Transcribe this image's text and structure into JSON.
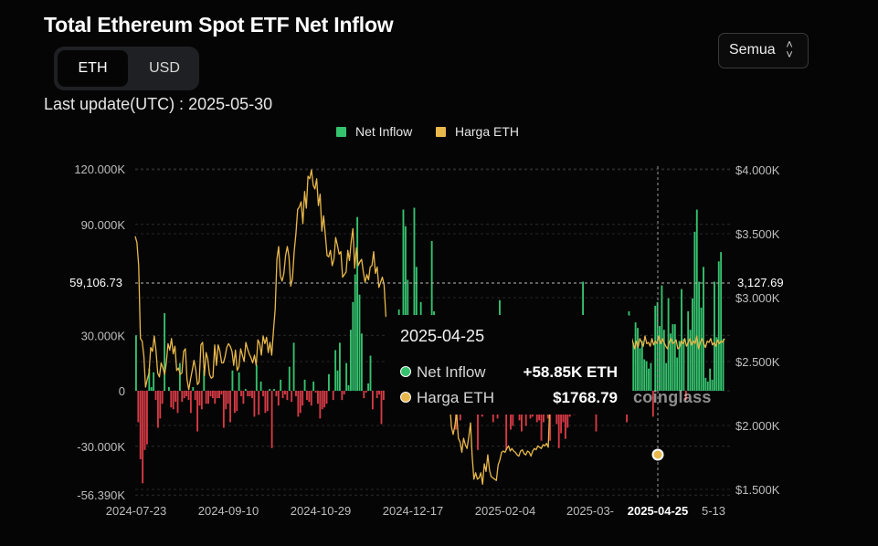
{
  "header": {
    "title": "Total Ethereum Spot ETF Net Inflow",
    "last_update": "Last update(UTC) : 2025-05-30"
  },
  "toggle": {
    "options": [
      "ETH",
      "USD"
    ],
    "selected": "ETH"
  },
  "range_select": {
    "value": "Semua"
  },
  "legend": [
    "Net Inflow",
    "Harga ETH"
  ],
  "colors": {
    "positive": "#35c26e",
    "negative": "#d63a45",
    "price": "#e9b84b",
    "background": "#050505",
    "grid": "#2f2f2f"
  },
  "chart_data": {
    "type": "bar",
    "title": "Total Ethereum Spot ETF Net Inflow",
    "series": [
      {
        "name": "Net Inflow",
        "type": "bar",
        "unit": "ETH",
        "axis": "left"
      },
      {
        "name": "Harga ETH",
        "type": "line",
        "unit": "USD",
        "axis": "right"
      }
    ],
    "left_axis": {
      "ticks": [
        "120.000K",
        "90.000K",
        "30.000K",
        "0",
        "-30.000K",
        "-56.390K"
      ],
      "range": [
        -56390,
        120000
      ]
    },
    "right_axis": {
      "ticks": [
        "$4.000K",
        "$3.500K",
        "$3.000K",
        "$2.500K",
        "$2.000K",
        "$1.500K"
      ],
      "range": [
        1500,
        4000
      ]
    },
    "x_ticks": [
      "2024-07-23",
      "2024-09-10",
      "2024-10-29",
      "2024-12-17",
      "2025-02-04",
      "2025-03-",
      "2025-04-25",
      "5-13"
    ],
    "crosshair": {
      "x": "2025-04-25",
      "left_value": "59,106.73",
      "right_value": "3,127.69"
    },
    "tooltip": {
      "date": "2025-04-25",
      "rows": [
        {
          "label": "Net Inflow",
          "value": "+58.85K ETH"
        },
        {
          "label": "Harga ETH",
          "value": "$1768.79"
        }
      ]
    },
    "net_inflow_K": [
      30,
      -17,
      -37,
      -50,
      -32,
      -29,
      12,
      2,
      10,
      -5,
      -20,
      -15,
      -7,
      42,
      0,
      2,
      -9,
      -10,
      -6,
      -12,
      15,
      -6,
      -4,
      -3,
      -5,
      -12,
      2,
      -5,
      -22,
      -8,
      -10,
      11,
      -7,
      -7,
      -3,
      -4,
      -7,
      -4,
      -4,
      -2,
      -20,
      -10,
      -7,
      -17,
      11,
      -12,
      -11,
      10,
      -3,
      -7,
      1,
      -3,
      -3,
      -4,
      -14,
      14,
      -13,
      5,
      -3,
      -12,
      -11,
      1,
      -31,
      1,
      -3,
      -8,
      6,
      -4,
      -2,
      -5,
      13,
      -6,
      26,
      -3,
      -14,
      -12,
      -8,
      6,
      -5,
      -6,
      -8,
      5,
      -1,
      -7,
      -15,
      -10,
      -9,
      -7,
      9,
      0,
      -5,
      22,
      11,
      26,
      -5,
      -2,
      15,
      3,
      33,
      48,
      63,
      94,
      52,
      31,
      -4,
      -1,
      4,
      19,
      -10,
      0,
      -4,
      -2,
      -18,
      -5,
      -11,
      13,
      10,
      -7,
      -4,
      26,
      44,
      -2,
      98,
      89,
      60,
      8,
      13,
      99,
      67,
      34,
      48,
      15,
      38,
      3,
      -4,
      81,
      43,
      20,
      -8,
      -12,
      -4,
      11,
      26,
      -4,
      -1,
      -7,
      -21,
      -10,
      -16,
      -7,
      -8,
      2,
      -7,
      4,
      -3,
      -5,
      -32,
      -8,
      -14,
      -6,
      -7,
      1,
      -8,
      -17,
      -3,
      -15,
      49,
      -10,
      -5,
      -32,
      -4,
      -21,
      -19,
      -8,
      -12,
      -16,
      -22,
      -11,
      -19,
      -7,
      -15,
      -14,
      -2,
      -17,
      -16,
      -27,
      -17,
      -11,
      -15,
      -27,
      -7,
      -6,
      -18,
      -31,
      -23,
      -17,
      -26,
      -20,
      -14,
      -8,
      -13,
      -3,
      -7,
      -3,
      59,
      35,
      10,
      36,
      20,
      10,
      -22,
      -8,
      29,
      6,
      11,
      3,
      -6,
      21,
      35,
      17,
      8,
      26,
      -3,
      36,
      -17,
      43,
      31,
      26,
      37,
      34,
      23,
      27,
      17,
      16,
      12,
      15,
      -14,
      46,
      48,
      35,
      57,
      33,
      15,
      50,
      31,
      36,
      36,
      18,
      27,
      55,
      28,
      -5,
      43,
      33,
      50,
      86,
      98,
      59,
      45,
      67,
      7,
      5,
      12,
      6,
      59,
      29,
      70,
      75,
      28
    ],
    "price_path": [
      3480,
      3430,
      3250,
      2680,
      2660,
      2540,
      2300,
      2360,
      2410,
      2610,
      2580,
      2700,
      2590,
      2410,
      2380,
      2490,
      2450,
      2400,
      2490,
      2640,
      2590,
      2680,
      2560,
      2620,
      2430,
      2450,
      2400,
      2410,
      2580,
      2600,
      2360,
      2280,
      2360,
      2430,
      2510,
      2440,
      2320,
      2340,
      2630,
      2650,
      2390,
      2570,
      2520,
      2400,
      2370,
      2380,
      2630,
      2470,
      2630,
      2580,
      2490,
      2490,
      2540,
      2610,
      2640,
      2620,
      2580,
      2470,
      2590,
      2430,
      2460,
      2600,
      2550,
      2500,
      2650,
      2600,
      2560,
      2530,
      2490,
      2550,
      2470,
      2670,
      2640,
      2550,
      2700,
      2640,
      2690,
      2570,
      2650,
      2550,
      2740,
      2910,
      3300,
      3400,
      3170,
      3130,
      3190,
      3330,
      3400,
      3320,
      3090,
      3150,
      3360,
      3500,
      3690,
      3710,
      3750,
      3580,
      3830,
      3700,
      3950,
      3930,
      4000,
      3880,
      3850,
      3930,
      3720,
      3810,
      3520,
      3640,
      3490,
      3330,
      3320,
      3370,
      3250,
      3300,
      3470,
      3410,
      3340,
      3360,
      3160,
      3180,
      3200,
      3370,
      3290,
      3440,
      3540,
      3230,
      3390,
      3250,
      3280,
      3300,
      3200,
      3120,
      3180,
      3140,
      3240,
      3250,
      3360,
      3190,
      3240,
      3080,
      3120,
      3160,
      3100,
      2860,
      2760,
      2750,
      2660,
      2690,
      2780,
      2760,
      2640,
      2620,
      2700,
      2660,
      2610,
      2670,
      2540,
      2670,
      2780,
      2700,
      2520,
      2560,
      2530,
      2450,
      2480,
      2500,
      2510,
      2480,
      2330,
      2360,
      2270,
      2290,
      2220,
      2100,
      2110,
      2180,
      2140,
      2220,
      2300,
      2180,
      2170,
      1990,
      1930,
      2000,
      2100,
      1900,
      1870,
      1790,
      1900,
      1850,
      1820,
      1910,
      2020,
      1760,
      1580,
      1630,
      1580,
      1590,
      1630,
      1540,
      1700,
      1640,
      1770,
      1650,
      1600,
      1590,
      1580,
      1570,
      1690,
      1730,
      1790,
      1800,
      1790,
      1820,
      1840,
      1800,
      1820,
      1800,
      1790,
      1770,
      1760,
      1800,
      1810,
      1780,
      1770,
      1800,
      1790,
      1760,
      1800,
      1820,
      1810,
      1840,
      1830,
      1820,
      1850,
      1840,
      1860,
      1830,
      2210,
      2200,
      2350,
      2500,
      2650,
      2580,
      2560,
      2620,
      2500,
      2480,
      2620,
      2660,
      2530,
      2700,
      2580,
      2610,
      2640,
      2560,
      2650,
      2700,
      2640,
      2560,
      2640,
      2680,
      2600,
      2590,
      2610,
      2670,
      2720,
      2610,
      2640,
      2690,
      2680,
      2640,
      2660,
      2560,
      2600,
      2640,
      2680,
      2620,
      2590,
      2650,
      2680,
      2620,
      2560,
      2600,
      2650,
      2700,
      2650,
      2600,
      2660,
      2610,
      2680,
      2650,
      2620,
      2700,
      2640,
      2650,
      2620,
      2680,
      2630,
      2660,
      2640,
      2700,
      2640,
      2680,
      2650,
      2620,
      2600,
      2650,
      2680,
      2640,
      2650,
      2670,
      2600,
      2610,
      2660,
      2640,
      2680,
      2620,
      2650,
      2680,
      2630,
      2660,
      2640,
      2700,
      2600,
      2650,
      2680,
      2640,
      2610,
      2660,
      2650,
      2680,
      2630,
      2650,
      2620,
      2670,
      2640,
      2660,
      2650,
      2680
    ]
  },
  "watermark": "coinglass"
}
